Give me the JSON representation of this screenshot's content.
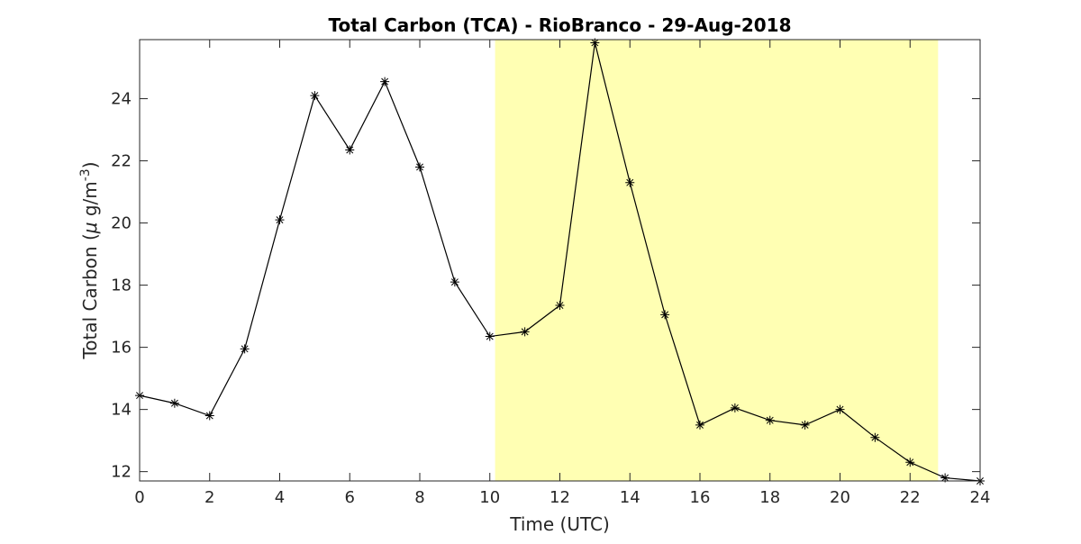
{
  "chart_data": {
    "type": "line",
    "title": "Total Carbon (TCA) - RioBranco - 29-Aug-2018",
    "xlabel": "Time (UTC)",
    "ylabel_prefix": "Total Carbon (",
    "ylabel_mu": "μ",
    "ylabel_unit": " g/m",
    "ylabel_sup": "-3",
    "ylabel_suffix": ")",
    "xlim": [
      0,
      24
    ],
    "ylim": [
      11.7,
      25.9
    ],
    "xticks": [
      0,
      2,
      4,
      6,
      8,
      10,
      12,
      14,
      16,
      18,
      20,
      22,
      24
    ],
    "yticks": [
      12,
      14,
      16,
      18,
      20,
      22,
      24
    ],
    "grid": false,
    "marker": "asterisk",
    "line_color": "#000000",
    "highlight": {
      "x_start": 10.15,
      "x_end": 22.8,
      "color": "#ffffb3"
    },
    "series": [
      {
        "x": [
          0,
          1,
          2,
          3,
          4,
          5,
          6,
          7,
          8,
          9,
          10,
          11,
          12,
          13,
          14,
          15,
          16,
          17,
          18,
          19,
          20,
          21,
          22,
          23,
          24
        ],
        "y": [
          14.45,
          14.2,
          13.8,
          15.95,
          20.1,
          24.1,
          22.35,
          24.55,
          21.8,
          18.1,
          16.35,
          16.5,
          17.35,
          25.8,
          21.3,
          17.05,
          13.5,
          14.05,
          13.65,
          13.5,
          14.0,
          13.1,
          12.3,
          11.8,
          11.7
        ]
      }
    ]
  }
}
